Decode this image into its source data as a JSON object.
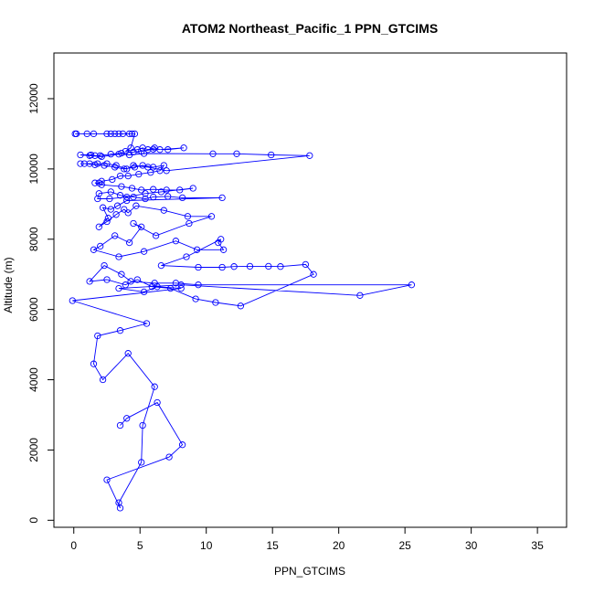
{
  "chart_data": {
    "type": "line",
    "title": "ATOM2 Northeast_Pacific_1 PPN_GTCIMS",
    "xlabel": "PPN_GTCIMS",
    "ylabel": "Altitude (m)",
    "xlim": [
      -1.5,
      37.2
    ],
    "ylim": [
      -200,
      13300
    ],
    "xticks": [
      0,
      5,
      10,
      15,
      20,
      25,
      30,
      35
    ],
    "yticks": [
      0,
      2000,
      4000,
      6000,
      8000,
      10000,
      12000
    ],
    "grid": false,
    "legend": "none",
    "colors": {
      "series": "#0000ff",
      "axes": "#000000"
    },
    "series": [
      {
        "points": [
          [
            0.1,
            11000
          ],
          [
            0.2,
            11000
          ],
          [
            1.0,
            11000
          ],
          [
            1.5,
            11000
          ],
          [
            2.5,
            11000
          ],
          [
            2.8,
            11000
          ],
          [
            3.1,
            11000
          ],
          [
            3.4,
            11000
          ],
          [
            3.7,
            11000
          ],
          [
            4.2,
            11000
          ],
          [
            4.4,
            11000
          ],
          [
            4.6,
            11000
          ],
          [
            4.3,
            10600
          ],
          [
            3.9,
            10500
          ],
          [
            4.8,
            10550
          ],
          [
            5.2,
            10600
          ],
          [
            5.6,
            10550
          ],
          [
            6.1,
            10600
          ],
          [
            6.5,
            10550
          ],
          [
            8.3,
            10600
          ],
          [
            7.1,
            10550
          ],
          [
            6.0,
            10560
          ],
          [
            5.1,
            10500
          ],
          [
            4.5,
            10480
          ],
          [
            3.6,
            10450
          ],
          [
            2.8,
            10420
          ],
          [
            2.0,
            10380
          ],
          [
            1.6,
            10380
          ],
          [
            1.3,
            10400
          ],
          [
            0.5,
            10400
          ],
          [
            1.2,
            10380
          ],
          [
            2.1,
            10350
          ],
          [
            3.4,
            10420
          ],
          [
            4.2,
            10400
          ],
          [
            5.3,
            10440
          ],
          [
            10.5,
            10430
          ],
          [
            12.3,
            10430
          ],
          [
            14.9,
            10400
          ],
          [
            17.8,
            10380
          ],
          [
            7.0,
            9950
          ],
          [
            5.6,
            10050
          ],
          [
            4.5,
            10100
          ],
          [
            4.0,
            10000
          ],
          [
            3.2,
            10100
          ],
          [
            2.5,
            10150
          ],
          [
            1.8,
            10150
          ],
          [
            1.2,
            10150
          ],
          [
            0.5,
            10150
          ],
          [
            0.8,
            10150
          ],
          [
            1.6,
            10120
          ],
          [
            2.3,
            10100
          ],
          [
            3.1,
            10050
          ],
          [
            3.8,
            10000
          ],
          [
            4.6,
            10050
          ],
          [
            5.2,
            10100
          ],
          [
            6.0,
            10050
          ],
          [
            6.8,
            10100
          ],
          [
            6.5,
            9950
          ],
          [
            5.8,
            9900
          ],
          [
            4.9,
            9850
          ],
          [
            4.1,
            9800
          ],
          [
            3.5,
            9800
          ],
          [
            2.9,
            9700
          ],
          [
            2.1,
            9650
          ],
          [
            1.9,
            9600
          ],
          [
            1.6,
            9600
          ],
          [
            2.1,
            9550
          ],
          [
            3.6,
            9500
          ],
          [
            4.4,
            9450
          ],
          [
            5.1,
            9400
          ],
          [
            6.0,
            9420
          ],
          [
            7.0,
            9400
          ],
          [
            8.0,
            9400
          ],
          [
            9.0,
            9450
          ],
          [
            6.6,
            9350
          ],
          [
            5.4,
            9300
          ],
          [
            4.0,
            9200
          ],
          [
            2.7,
            9150
          ],
          [
            1.8,
            9150
          ],
          [
            1.9,
            9300
          ],
          [
            2.8,
            9350
          ],
          [
            3.5,
            9250
          ],
          [
            4.5,
            9200
          ],
          [
            5.4,
            9150
          ],
          [
            6.0,
            9200
          ],
          [
            7.1,
            9220
          ],
          [
            8.2,
            9180
          ],
          [
            11.2,
            9180
          ],
          [
            4.0,
            9100
          ],
          [
            3.3,
            8950
          ],
          [
            2.8,
            8850
          ],
          [
            2.2,
            8900
          ],
          [
            2.6,
            8600
          ],
          [
            1.9,
            8350
          ],
          [
            2.5,
            8500
          ],
          [
            3.2,
            8700
          ],
          [
            3.8,
            8850
          ],
          [
            4.1,
            8750
          ],
          [
            4.7,
            8950
          ],
          [
            6.8,
            8820
          ],
          [
            8.6,
            8650
          ],
          [
            10.4,
            8650
          ],
          [
            8.7,
            8450
          ],
          [
            6.2,
            8100
          ],
          [
            4.5,
            8450
          ],
          [
            5.1,
            8350
          ],
          [
            4.2,
            7900
          ],
          [
            3.1,
            8100
          ],
          [
            2.0,
            7800
          ],
          [
            1.5,
            7700
          ],
          [
            3.4,
            7500
          ],
          [
            5.3,
            7650
          ],
          [
            7.7,
            7950
          ],
          [
            9.3,
            7700
          ],
          [
            11.3,
            7700
          ],
          [
            10.9,
            7900
          ],
          [
            11.1,
            8000
          ],
          [
            8.5,
            7500
          ],
          [
            6.6,
            7250
          ],
          [
            9.4,
            7200
          ],
          [
            11.2,
            7200
          ],
          [
            12.1,
            7220
          ],
          [
            13.3,
            7230
          ],
          [
            14.7,
            7230
          ],
          [
            15.6,
            7220
          ],
          [
            17.5,
            7280
          ],
          [
            18.1,
            7000
          ],
          [
            12.6,
            6100
          ],
          [
            10.7,
            6200
          ],
          [
            9.2,
            6300
          ],
          [
            7.3,
            6600
          ],
          [
            5.9,
            6650
          ],
          [
            4.8,
            6850
          ],
          [
            3.9,
            6700
          ],
          [
            2.5,
            6850
          ],
          [
            1.2,
            6800
          ],
          [
            2.3,
            7250
          ],
          [
            3.6,
            7000
          ],
          [
            4.3,
            6800
          ],
          [
            6.1,
            6750
          ],
          [
            7.7,
            6750
          ],
          [
            9.4,
            6700
          ],
          [
            25.5,
            6700
          ],
          [
            21.6,
            6400
          ],
          [
            8.1,
            6700
          ],
          [
            3.4,
            6600
          ],
          [
            5.3,
            6500
          ],
          [
            6.3,
            6650
          ],
          [
            8.1,
            6600
          ],
          [
            -0.1,
            6250
          ],
          [
            5.5,
            5600
          ],
          [
            3.5,
            5400
          ],
          [
            1.8,
            5250
          ],
          [
            1.5,
            4450
          ],
          [
            2.2,
            4000
          ],
          [
            4.1,
            4750
          ],
          [
            6.1,
            3800
          ],
          [
            5.2,
            2700
          ],
          [
            5.1,
            1650
          ],
          [
            3.4,
            500
          ],
          [
            3.5,
            350
          ],
          [
            2.5,
            1150
          ],
          [
            7.2,
            1800
          ],
          [
            8.2,
            2150
          ],
          [
            6.3,
            3350
          ],
          [
            4.0,
            2900
          ],
          [
            3.5,
            2700
          ]
        ]
      }
    ]
  }
}
